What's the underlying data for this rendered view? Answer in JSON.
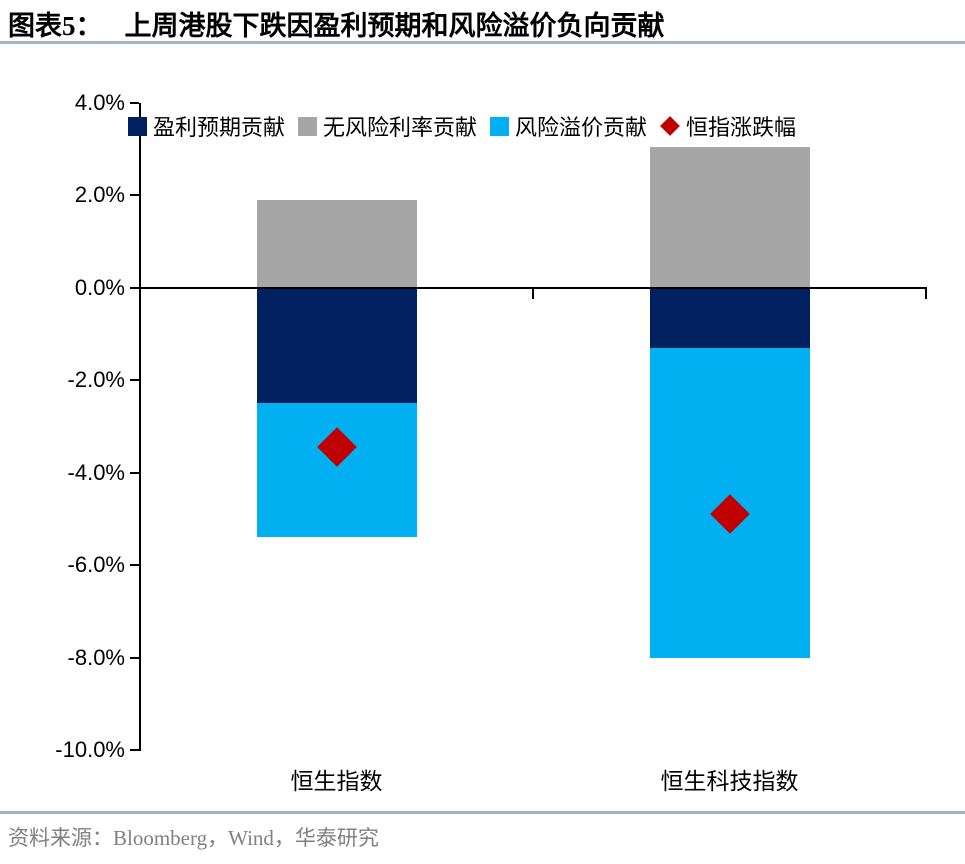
{
  "header": {
    "figure_label": "图表5：",
    "title": "上周港股下跌因盈利预期和风险溢价负向贡献"
  },
  "footer": {
    "source": "资料来源：Bloomberg，Wind，华泰研究"
  },
  "colors": {
    "navy": "#002060",
    "gray": "#a6a6a6",
    "cyan": "#00b0f0",
    "red": "#c00000",
    "divider": "#a0b4c6",
    "axis": "#000000",
    "source_text": "#808080"
  },
  "chart_data": {
    "type": "bar",
    "stacked": true,
    "grid": false,
    "legend_position": "top-left",
    "categories": [
      "恒生指数",
      "恒生科技指数"
    ],
    "series": [
      {
        "key": "earnings-expectation",
        "name": "盈利预期贡献",
        "color_key": "navy",
        "values": [
          -2.5,
          -1.3
        ]
      },
      {
        "key": "risk-free-rate",
        "name": "无风险利率贡献",
        "color_key": "gray",
        "values": [
          1.9,
          3.05
        ]
      },
      {
        "key": "risk-premium",
        "name": "风险溢价贡献",
        "color_key": "cyan",
        "values": [
          -2.9,
          -6.7
        ]
      }
    ],
    "markers": {
      "key": "index-change",
      "name": "恒指涨跌幅",
      "color_key": "red",
      "values": [
        -3.45,
        -4.9
      ]
    },
    "ylabel": "",
    "xlabel": "",
    "ylim": [
      -10,
      4
    ],
    "y_tick_step": 2,
    "y_ticks": [
      "4.0%",
      "2.0%",
      "0.0%",
      "-2.0%",
      "-4.0%",
      "-6.0%",
      "-8.0%",
      "-10.0%"
    ]
  }
}
